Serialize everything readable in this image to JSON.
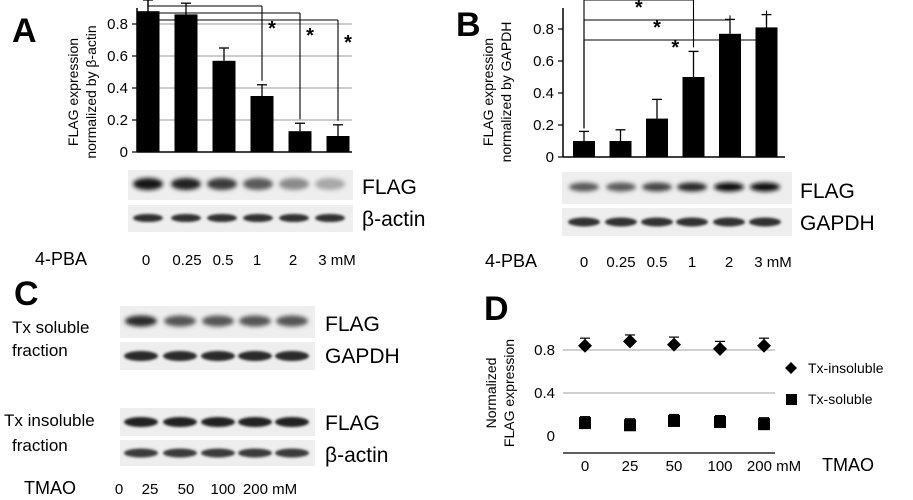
{
  "panels": {
    "A": {
      "letter": "A"
    },
    "B": {
      "letter": "B"
    },
    "C": {
      "letter": "C"
    },
    "D": {
      "letter": "D"
    }
  },
  "chart_data": [
    {
      "panel": "A",
      "type": "bar",
      "ylabel_line1": "FLAG expression",
      "ylabel_line2": "normalized by β-actin",
      "ylim": [
        0,
        0.9
      ],
      "yticks": [
        "0",
        "0.2",
        "0.4",
        "0.6",
        "0.8"
      ],
      "categories": [
        "0",
        "0.25",
        "0.5",
        "1",
        "2",
        "3 mM"
      ],
      "values": [
        0.88,
        0.86,
        0.57,
        0.35,
        0.13,
        0.1
      ],
      "errors": [
        0.07,
        0.07,
        0.08,
        0.07,
        0.05,
        0.07
      ],
      "significance": [
        "",
        "",
        "",
        "*",
        "*",
        "*"
      ],
      "treatment_label": "4-PBA",
      "blot_labels": [
        "FLAG",
        "β-actin"
      ],
      "grid": true,
      "bar_color": "#000000"
    },
    {
      "panel": "B",
      "type": "bar",
      "ylabel_line1": "FLAG expression",
      "ylabel_line2": "normalized by GAPDH",
      "ylim": [
        0,
        0.9
      ],
      "yticks": [
        "0",
        "0.2",
        "0.4",
        "0.6",
        "0.8"
      ],
      "categories": [
        "0",
        "0.25",
        "0.5",
        "1",
        "2",
        "3 mM"
      ],
      "values": [
        0.1,
        0.1,
        0.24,
        0.5,
        0.77,
        0.81
      ],
      "errors": [
        0.06,
        0.07,
        0.12,
        0.16,
        0.09,
        0.08
      ],
      "significance": [
        "",
        "",
        "",
        "*",
        "*",
        "*"
      ],
      "treatment_label": "4-PBA",
      "blot_labels": [
        "FLAG",
        "GAPDH"
      ],
      "grid": false,
      "bar_color": "#000000"
    },
    {
      "panel": "D",
      "type": "scatter",
      "ylabel_line1": "Normalized",
      "ylabel_line2": "FLAG expression",
      "ylim": [
        0,
        1.0
      ],
      "yticks": [
        "0",
        "0.4",
        "0.8"
      ],
      "categories": [
        "0",
        "25",
        "50",
        "100",
        "200 mM"
      ],
      "treatment_label": "TMAO",
      "series": [
        {
          "name": "Tx-insoluble",
          "marker": "diamond",
          "values": [
            0.84,
            0.88,
            0.85,
            0.81,
            0.84
          ],
          "errors": [
            0.07,
            0.06,
            0.07,
            0.07,
            0.07
          ]
        },
        {
          "name": "Tx-soluble",
          "marker": "square",
          "values": [
            0.12,
            0.1,
            0.14,
            0.13,
            0.11
          ],
          "errors": [
            0.06,
            0.06,
            0.06,
            0.06,
            0.06
          ]
        }
      ],
      "grid": true,
      "legend_position": "right"
    }
  ],
  "panel_C": {
    "soluble_line1": "Tx soluble",
    "soluble_line2": "fraction",
    "insoluble_line1": "Tx insoluble",
    "insoluble_line2": "fraction",
    "blot_labels_top": [
      "FLAG",
      "GAPDH"
    ],
    "blot_labels_bottom": [
      "FLAG",
      "β-actin"
    ],
    "treatment_label": "TMAO",
    "lanes": [
      "0",
      "25",
      "50",
      "100",
      "200 mM"
    ]
  }
}
